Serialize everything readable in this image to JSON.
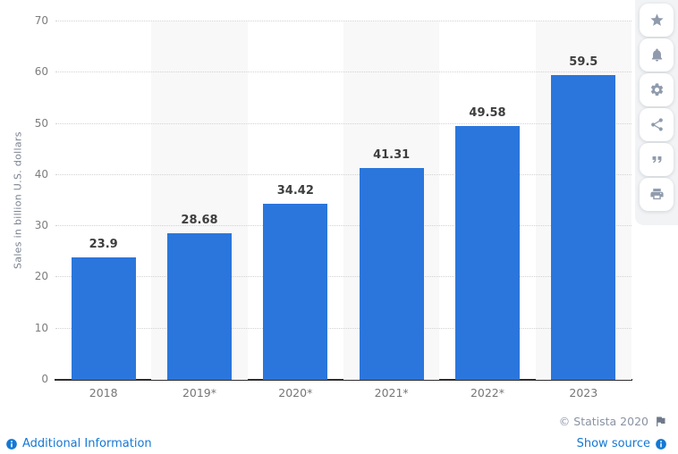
{
  "chart_data": {
    "type": "bar",
    "categories": [
      "2018",
      "2019*",
      "2020*",
      "2021*",
      "2022*",
      "2023"
    ],
    "values": [
      23.9,
      28.68,
      34.42,
      41.31,
      49.58,
      59.5
    ],
    "title": "",
    "xlabel": "",
    "ylabel": "Sales in billion U.S. dollars",
    "ylim": [
      0,
      70
    ],
    "ytick_step": 10,
    "grid": true,
    "legend": false,
    "bar_color": "#2b76dc",
    "band_color": "#f8f8f8"
  },
  "toolbar": {
    "buttons": [
      {
        "name": "favorite-button",
        "icon": "star-icon"
      },
      {
        "name": "alert-button",
        "icon": "bell-icon"
      },
      {
        "name": "settings-button",
        "icon": "gear-icon"
      },
      {
        "name": "share-button",
        "icon": "share-icon"
      },
      {
        "name": "cite-button",
        "icon": "quote-icon"
      },
      {
        "name": "print-button",
        "icon": "print-icon"
      }
    ]
  },
  "footer": {
    "copyright": "© Statista 2020",
    "flag_icon": "flag-icon",
    "additional_info_label": "Additional Information",
    "additional_info_icon": "info-icon",
    "show_source_label": "Show source",
    "show_source_icon": "info-icon"
  },
  "colors": {
    "accent_blue": "#2b76dc",
    "link_blue": "#1478d4",
    "muted_text": "#7d7d7d",
    "icon_gray": "#8f9bad"
  }
}
